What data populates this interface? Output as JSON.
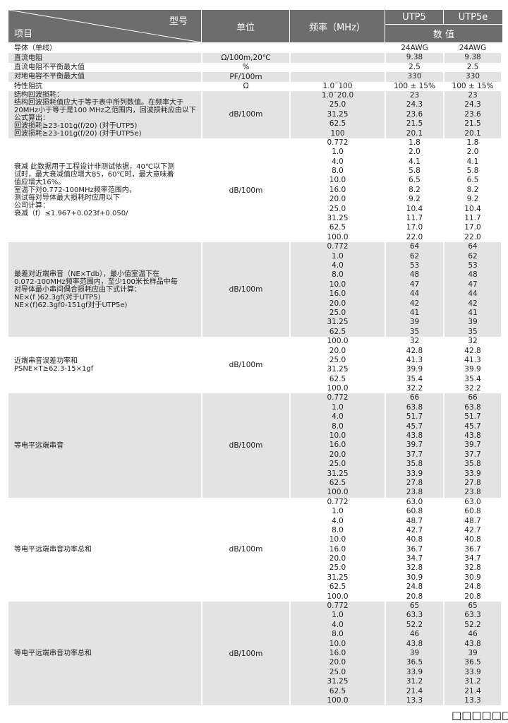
{
  "header": {
    "item": "项目",
    "model": "型号",
    "unit": "单位",
    "freq": "频率（MHz）",
    "utp5": "UTP5",
    "utp5e": "UTP5e",
    "value": "数 值"
  },
  "rows": [
    {
      "desc": "导体（单线）",
      "unit": "",
      "freq": [
        ""
      ],
      "utp5": [
        "24AWG"
      ],
      "utp5e": [
        "24AWG"
      ]
    },
    {
      "desc": "直流电阻",
      "unit": "Ω/100m,20℃",
      "freq": [
        ""
      ],
      "utp5": [
        "9.38"
      ],
      "utp5e": [
        "9.38"
      ]
    },
    {
      "desc": "直流电阻不平衡最大值",
      "unit": "%",
      "freq": [
        ""
      ],
      "utp5": [
        "2.5"
      ],
      "utp5e": [
        "2.5"
      ]
    },
    {
      "desc": "对地电容不平衡最大值",
      "unit": "PF/100m",
      "freq": [
        ""
      ],
      "utp5": [
        "330"
      ],
      "utp5e": [
        "330"
      ]
    },
    {
      "desc": "特性阻抗",
      "unit": "Ω",
      "freq": [
        "1.0¯100"
      ],
      "utp5": [
        "100 ± 15%"
      ],
      "utp5e": [
        "100 ± 15%"
      ]
    },
    {
      "desc": "结构回波损耗：\n结构回波损耗值应大于等于表中所列数值。在频率大于\n20MHz小于等于是100 MHz之范围内，回波损耗应由以下\n公式算出：\n回波损耗≥23-101g(f/20)    (对于UTP5)\n回波损耗≥23-101g(f/20)    (对于UTP5e)",
      "unit": "dB/100m",
      "top": true,
      "freq": [
        "1.0¯20.0",
        "25.0",
        "31.25",
        "62.5",
        "100"
      ],
      "utp5": [
        "23",
        "24.3",
        "23.6",
        "21.5",
        "20.1"
      ],
      "utp5e": [
        "23",
        "24.3",
        "23.6",
        "21.5",
        "20.1"
      ]
    },
    {
      "desc": "衰减 此数据用于工程设计非测试依据，40℃以下测\n试时，最大衰减值应增大85，60℃时，最大意味着\n值应增大16%。\n室温下对0.772-100MHz频率范围内，\n测试每对导体最大损耗时应用以下\n公司计算：\n衰减（f）≤1.967+0.023f+0.050/",
      "unit": "dB/100m",
      "freq": [
        "0.772",
        "1.0",
        "4.0",
        "8.0",
        "10.0",
        "16.0",
        "20.0",
        "25.0",
        "31.25",
        "62.5",
        "100.0"
      ],
      "utp5": [
        "1.8",
        "2.0",
        "4.1",
        "5.8",
        "6.5",
        "8.2",
        "9.2",
        "10.4",
        "11.7",
        "17.0",
        "22.0"
      ],
      "utp5e": [
        "1.8",
        "2.0",
        "4.1",
        "5.8",
        "6.5",
        "8.2",
        "9.2",
        "10.4",
        "11.7",
        "17.0",
        "22.0"
      ]
    },
    {
      "desc": "最差对近端串音（NE×Tdb），最小值室温下在\n0.072-100MHz频率范围内，至少100米长样品中每\n对导体最小串间偶合损耗应由下式计算：\nNE×(f )62.3gf(对于UTP5)\nNE×(f)62.3gf0-151gf对于UTP5e)",
      "unit": "dB/100m",
      "freq": [
        "0.772",
        "1.0",
        "4.0",
        "8.0",
        "10.0",
        "16.0",
        "20.0",
        "25.0",
        "31.25",
        "62.5"
      ],
      "utp5": [
        "64",
        "62",
        "53",
        "48",
        "47",
        "44",
        "42",
        "41",
        "39",
        "35"
      ],
      "utp5e": [
        "64",
        "62",
        "53",
        "48",
        "47",
        "44",
        "42",
        "41",
        "39",
        "35"
      ]
    },
    {
      "desc": "近端串音误差功率和\nPSNE×T≥62.3-15×1gf",
      "unit": "dB/100m",
      "freq": [
        "100.0",
        "20.0",
        "25.0",
        "31.25",
        "62.5",
        "100.0"
      ],
      "utp5": [
        "32",
        "42.8",
        "41.3",
        "39.9",
        "35.4",
        "32.2"
      ],
      "utp5e": [
        "32",
        "42.8",
        "41.3",
        "39.9",
        "35.4",
        "32.2"
      ]
    },
    {
      "desc": "等电平远端串音",
      "unit": "dB/100m",
      "freq": [
        "0.772",
        "1.0",
        "4.0",
        "8.0",
        "10.0",
        "16.0",
        "20.0",
        "25.0",
        "31.25",
        "62.5",
        "100.0"
      ],
      "utp5": [
        "66",
        "63.8",
        "51.7",
        "45.7",
        "43.8",
        "39.7",
        "37.7",
        "35.8",
        "33.9",
        "27.8",
        "23.8"
      ],
      "utp5e": [
        "66",
        "63.8",
        "51.7",
        "45.7",
        "43.8",
        "39.7",
        "37.7",
        "35.8",
        "33.9",
        "27.8",
        "23.8"
      ]
    },
    {
      "desc": "等电平远端串音功率总和",
      "unit": "dB/100m",
      "freq": [
        "0.772",
        "1.0",
        "4.0",
        "8.0",
        "10.0",
        "16.0",
        "20.0",
        "25.0",
        "31.25",
        "62.5",
        "100.0"
      ],
      "utp5": [
        "63.0",
        "60.8",
        "48.7",
        "42.7",
        "40.8",
        "36.7",
        "34.7",
        "32.8",
        "30.9",
        "24.8",
        "20.8"
      ],
      "utp5e": [
        "63.0",
        "60.8",
        "48.7",
        "42.7",
        "40.8",
        "36.7",
        "34.7",
        "32.8",
        "30.9",
        "24.8",
        "20.8"
      ]
    },
    {
      "desc": "等电平远端串音功率总和",
      "unit": "dB/100m",
      "freq": [
        "0.772",
        "1.0",
        "4.0",
        "8.0",
        "10.0",
        "16.0",
        "20.0",
        "25.0",
        "31.25",
        "62.5",
        "100.0"
      ],
      "utp5": [
        "65",
        "63.3",
        "52.2",
        "46",
        "43.8",
        "39",
        "36.5",
        "33.9",
        "31.2",
        "21.4",
        "13.3"
      ],
      "utp5e": [
        "65",
        "63.3",
        "52.2",
        "46",
        "43.8",
        "39",
        "36.5",
        "33.9",
        "31.2",
        "21.4",
        "13.3"
      ]
    }
  ],
  "overlay_text": "□□□□□□□"
}
